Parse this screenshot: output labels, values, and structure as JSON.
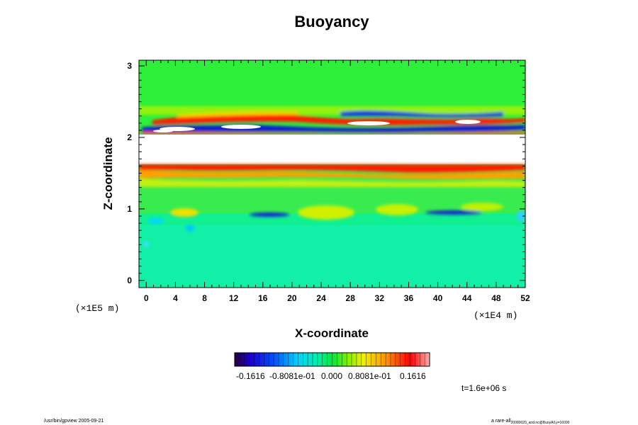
{
  "chart_data": {
    "type": "heatmap",
    "title": "Buoyancy",
    "xlabel": "X-coordinate",
    "ylabel": "Z-coordinate",
    "x_ticks": [
      "0",
      "4",
      "8",
      "12",
      "16",
      "20",
      "24",
      "28",
      "32",
      "36",
      "40",
      "44",
      "48",
      "52"
    ],
    "y_ticks": [
      "0",
      "1",
      "2",
      "3"
    ],
    "x_tick_values": [
      0,
      4,
      8,
      12,
      16,
      20,
      24,
      28,
      32,
      36,
      40,
      44,
      48,
      52
    ],
    "y_tick_values": [
      0,
      1,
      2,
      3
    ],
    "xlim": [
      -1,
      52
    ],
    "ylim": [
      -0.1,
      3.08
    ],
    "x_scale_label": "(×1E4 m)",
    "y_scale_label": "(×1E5 m)",
    "grid": false,
    "colorbar": {
      "labels": [
        "-0.1616",
        "-0.8081e-01",
        "0.000",
        "0.8081e-01",
        "0.1616"
      ],
      "range": [
        -0.1616,
        0.1616
      ],
      "colors": [
        "#2a003a",
        "#1a00d0",
        "#00d0ff",
        "#00f0c0",
        "#00e840",
        "#80f000",
        "#f0f000",
        "#ff9000",
        "#ff0000",
        "#ffb0b0"
      ]
    },
    "features": [
      {
        "description": "upper layer band",
        "z_range": [
          2.05,
          2.5
        ],
        "values": "mixed strongly positive and negative"
      },
      {
        "description": "white gap (out of range)",
        "z_range": [
          2.05,
          1.65
        ]
      },
      {
        "description": "red interface band",
        "z": 1.6,
        "value": 0.16
      },
      {
        "description": "blue streaks",
        "z": 0.9,
        "x_ranges": [
          [
            14,
            20
          ],
          [
            38,
            47
          ]
        ],
        "value": -0.16
      }
    ]
  },
  "time_label": "t=1.6e+06 s",
  "footer": {
    "left": "/usr/bin/gpview 2005-09-21",
    "right": "a rare-all",
    "right_sub": "20080020_and.nc@BuoyAll,y=16000"
  }
}
